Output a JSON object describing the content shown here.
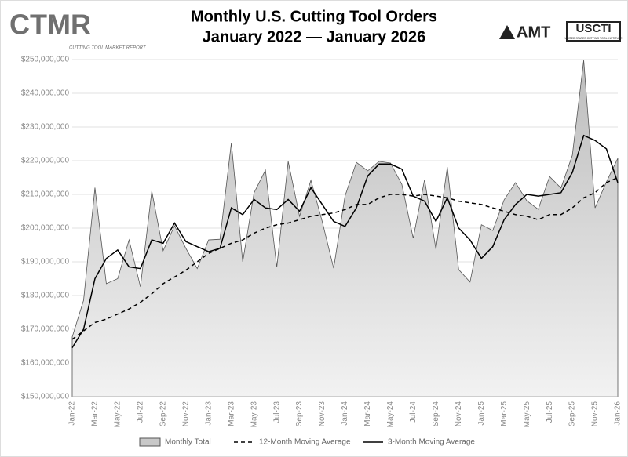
{
  "chart_data": {
    "type": "line",
    "title": "Monthly U.S. Cutting Tool Orders",
    "subtitle": "January 2022 — January 2026",
    "logos": {
      "ctmr": "CTMR",
      "ctmr_sub": "CUTTING TOOL MARKET REPORT",
      "amt": "AMT",
      "uscti": "USCTI",
      "uscti_sub": "UNITED STATES CUTTING TOOL INSTITUTE"
    },
    "categories": [
      "Jan-22",
      null,
      "Mar-22",
      null,
      "May-22",
      null,
      "Jul-22",
      null,
      "Sep-22",
      null,
      "Nov-22",
      null,
      "Jan-23",
      null,
      "Mar-23",
      null,
      "May-23",
      null,
      "Jul-23",
      null,
      "Sep-23",
      null,
      "Nov-23",
      null,
      "Jan-24",
      null,
      "Mar-24",
      null,
      "May-24",
      null,
      "Jul-24",
      null,
      "Sep-24",
      null,
      "Nov-24",
      null,
      "Jan-25",
      null,
      "Mar-25",
      null,
      "May-25",
      null,
      "Jul-25",
      null,
      "Sep-25",
      null,
      "Nov-25",
      null,
      "Jan-26"
    ],
    "series": [
      {
        "name": "Monthly Total",
        "style": "area",
        "color": "#555555",
        "fill": "#c8c8c8",
        "values": [
          167700000,
          178600000,
          212000000,
          183500000,
          185000000,
          196500000,
          182600000,
          211000000,
          193300000,
          200700000,
          194000000,
          188000000,
          196500000,
          196700000,
          225300000,
          190000000,
          210500000,
          217200000,
          188400000,
          219800000,
          203500000,
          214200000,
          201900000,
          188100000,
          209500000,
          219500000,
          217000000,
          219800000,
          219300000,
          213000000,
          197000000,
          214400000,
          193700000,
          218100000,
          187700000,
          184000000,
          201000000,
          199300000,
          208400000,
          213500000,
          208100000,
          205600000,
          215300000,
          211900000,
          221600000,
          249800000,
          206000000,
          213700000,
          220700000
        ]
      },
      {
        "name": "12-Month Moving Average",
        "style": "dashed",
        "color": "#000000",
        "values": [
          167000000,
          169500000,
          172000000,
          173000000,
          174500000,
          176000000,
          178000000,
          180500000,
          183500000,
          185500000,
          187500000,
          190000000,
          192500000,
          194000000,
          195500000,
          196500000,
          198500000,
          200000000,
          201000000,
          201500000,
          202500000,
          203500000,
          204000000,
          204500000,
          205500000,
          207000000,
          207000000,
          209000000,
          210000000,
          210000000,
          209500000,
          210000000,
          209500000,
          209000000,
          208000000,
          207500000,
          207000000,
          206000000,
          205000000,
          204000000,
          203500000,
          202500000,
          204000000,
          204000000,
          206000000,
          209000000,
          210500000,
          213500000,
          215000000
        ]
      },
      {
        "name": "3-Month Moving Average",
        "style": "solid",
        "color": "#000000",
        "values": [
          164500000,
          170000000,
          185000000,
          191000000,
          193500000,
          188500000,
          188000000,
          196500000,
          195500000,
          201500000,
          196000000,
          194500000,
          193000000,
          194000000,
          206000000,
          204000000,
          208500000,
          206000000,
          205500000,
          208500000,
          205000000,
          212000000,
          207000000,
          202000000,
          200500000,
          206000000,
          215500000,
          219000000,
          219000000,
          217500000,
          209500000,
          208000000,
          202000000,
          209000000,
          200000000,
          196500000,
          191000000,
          194500000,
          202500000,
          207000000,
          210000000,
          209500000,
          210000000,
          210500000,
          216500000,
          227500000,
          226000000,
          223500000,
          213500000
        ]
      }
    ],
    "ylim": [
      150000000,
      250000000
    ],
    "yticks": [
      {
        "value": 150000000,
        "label": "$150,000,000"
      },
      {
        "value": 160000000,
        "label": "$160,000,000"
      },
      {
        "value": 170000000,
        "label": "$170,000,000"
      },
      {
        "value": 180000000,
        "label": "$180,000,000"
      },
      {
        "value": 190000000,
        "label": "$190,000,000"
      },
      {
        "value": 200000000,
        "label": "$200,000,000"
      },
      {
        "value": 210000000,
        "label": "$210,000,000"
      },
      {
        "value": 220000000,
        "label": "$220,000,000"
      },
      {
        "value": 230000000,
        "label": "$230,000,000"
      },
      {
        "value": 240000000,
        "label": "$240,000,000"
      },
      {
        "value": 250000000,
        "label": "$250,000,000"
      }
    ],
    "grid": true,
    "legend": "bottom"
  }
}
